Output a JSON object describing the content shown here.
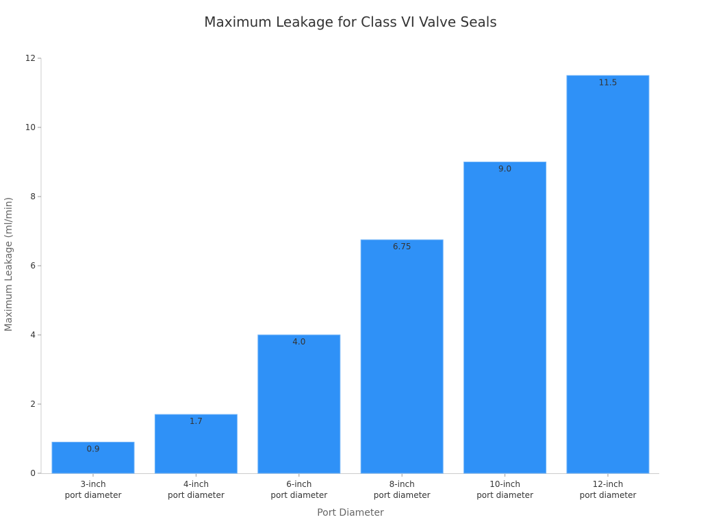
{
  "chart_data": {
    "type": "bar",
    "title": "Maximum Leakage for Class VI Valve Seals",
    "xlabel": "Port Diameter",
    "ylabel": "Maximum Leakage (ml/min)",
    "categories": [
      "3-inch\nport diameter",
      "4-inch\nport diameter",
      "6-inch\nport diameter",
      "8-inch\nport diameter",
      "10-inch\nport diameter",
      "12-inch\nport diameter"
    ],
    "category_lines": [
      [
        "3-inch",
        "port diameter"
      ],
      [
        "4-inch",
        "port diameter"
      ],
      [
        "6-inch",
        "port diameter"
      ],
      [
        "8-inch",
        "port diameter"
      ],
      [
        "10-inch",
        "port diameter"
      ],
      [
        "12-inch",
        "port diameter"
      ]
    ],
    "values": [
      0.9,
      1.7,
      4.0,
      6.75,
      9.0,
      11.5
    ],
    "value_labels": [
      "0.9",
      "1.7",
      "4.0",
      "6.75",
      "9.0",
      "11.5"
    ],
    "ylim": [
      0,
      12
    ],
    "yticks": [
      0,
      2,
      4,
      6,
      8,
      10,
      12
    ],
    "grid": false,
    "legend": null,
    "bar_color": "#2f91f7",
    "bar_edge_color": "#6fb3f8"
  },
  "title": "Maximum Leakage for Class VI Valve Seals",
  "xlabel": "Port Diameter",
  "ylabel": "Maximum Leakage (ml/min)"
}
